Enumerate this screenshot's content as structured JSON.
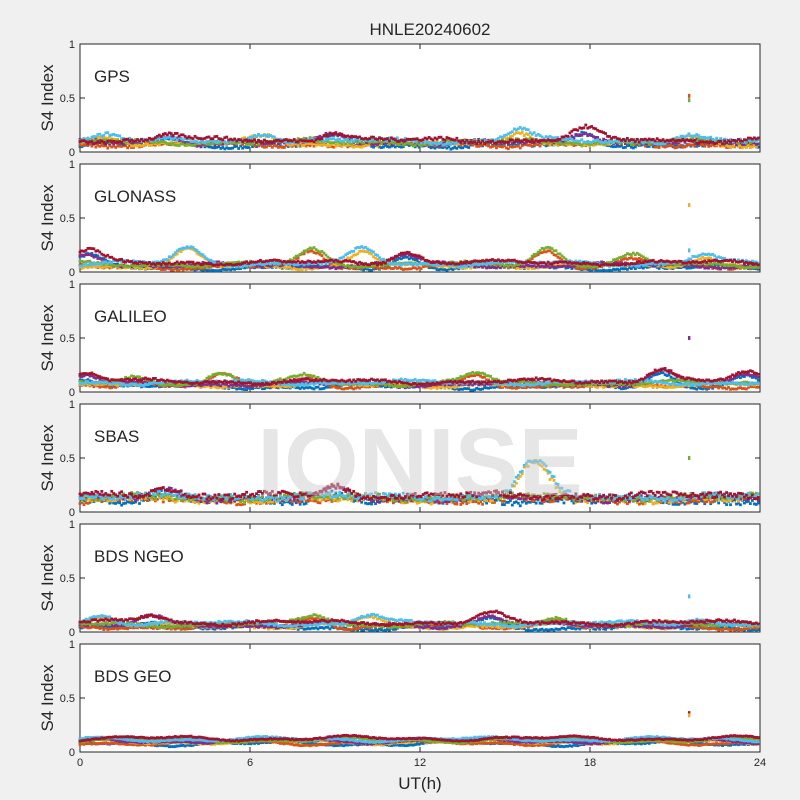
{
  "figure": {
    "title": "HNLE20240602",
    "watermark": "IONISE",
    "xlabel": "UT(h)",
    "xticks": [
      "0",
      "6",
      "12",
      "18",
      "24"
    ],
    "xlim": [
      0,
      24
    ]
  },
  "colors": [
    "#0072bd",
    "#d95319",
    "#edb120",
    "#7e2f8e",
    "#77ac30",
    "#4dbeee",
    "#a2142f"
  ],
  "chart_data": [
    {
      "type": "scatter",
      "title": "GPS",
      "ylabel": "S4 Index",
      "xlim": [
        0,
        24
      ],
      "ylim": [
        0,
        1
      ],
      "yticks": [
        "0",
        "0.5",
        "1"
      ],
      "baseline": 0.08,
      "noise": 0.03,
      "bumps": [
        [
          1.0,
          0.15
        ],
        [
          3.2,
          0.14
        ],
        [
          6.5,
          0.15
        ],
        [
          9.0,
          0.16
        ],
        [
          15.5,
          0.2
        ],
        [
          17.8,
          0.19
        ],
        [
          21.5,
          0.15
        ]
      ],
      "spikes": [
        {
          "x": 21.5,
          "y": 0.52
        },
        {
          "x": 21.5,
          "y": 0.48
        }
      ]
    },
    {
      "type": "scatter",
      "title": "GLONASS",
      "ylabel": "S4 Index",
      "xlim": [
        0,
        24
      ],
      "ylim": [
        0,
        1
      ],
      "yticks": [
        "0",
        "0.5",
        "1"
      ],
      "baseline": 0.06,
      "noise": 0.02,
      "bumps": [
        [
          0.3,
          0.17
        ],
        [
          3.8,
          0.2
        ],
        [
          8.2,
          0.2
        ],
        [
          10.0,
          0.19
        ],
        [
          11.5,
          0.16
        ],
        [
          16.5,
          0.22
        ],
        [
          19.5,
          0.14
        ],
        [
          22.0,
          0.15
        ]
      ],
      "spikes": [
        {
          "x": 21.5,
          "y": 0.62
        },
        {
          "x": 21.5,
          "y": 0.2
        }
      ]
    },
    {
      "type": "scatter",
      "title": "GALILEO",
      "ylabel": "S4 Index",
      "xlim": [
        0,
        24
      ],
      "ylim": [
        0,
        1
      ],
      "yticks": [
        "0",
        "0.5",
        "1"
      ],
      "baseline": 0.07,
      "noise": 0.02,
      "bumps": [
        [
          0.2,
          0.15
        ],
        [
          2.0,
          0.12
        ],
        [
          5.0,
          0.16
        ],
        [
          8.0,
          0.14
        ],
        [
          14.0,
          0.16
        ],
        [
          20.5,
          0.2
        ],
        [
          23.5,
          0.15
        ]
      ],
      "spikes": [
        {
          "x": 21.5,
          "y": 0.5
        }
      ]
    },
    {
      "type": "scatter",
      "title": "SBAS",
      "ylabel": "S4 Index",
      "xlim": [
        0,
        24
      ],
      "ylim": [
        0,
        1
      ],
      "yticks": [
        "0",
        "0.5",
        "1"
      ],
      "baseline": 0.12,
      "noise": 0.05,
      "bumps": [
        [
          15.8,
          0.32
        ],
        [
          16.3,
          0.3
        ],
        [
          3.0,
          0.2
        ],
        [
          9.0,
          0.2
        ]
      ],
      "spikes": [
        {
          "x": 21.5,
          "y": 0.5
        }
      ]
    },
    {
      "type": "scatter",
      "title": "BDS NGEO",
      "ylabel": "S4 Index",
      "xlim": [
        0,
        24
      ],
      "ylim": [
        0,
        1
      ],
      "yticks": [
        "0",
        "0.5",
        "1"
      ],
      "baseline": 0.06,
      "noise": 0.02,
      "bumps": [
        [
          0.8,
          0.14
        ],
        [
          2.5,
          0.13
        ],
        [
          8.3,
          0.15
        ],
        [
          10.2,
          0.14
        ],
        [
          14.5,
          0.14
        ],
        [
          16.8,
          0.14
        ],
        [
          21.8,
          0.1
        ]
      ],
      "spikes": [
        {
          "x": 21.5,
          "y": 0.33
        }
      ]
    },
    {
      "type": "scatter",
      "title": "BDS GEO",
      "ylabel": "S4 Index",
      "xlim": [
        0,
        24
      ],
      "ylim": [
        0,
        1
      ],
      "yticks": [
        "0",
        "0.5",
        "1"
      ],
      "baseline": 0.1,
      "noise": 0.01,
      "bumps": [],
      "spikes": [
        {
          "x": 21.5,
          "y": 0.36
        },
        {
          "x": 21.5,
          "y": 0.34
        }
      ]
    }
  ]
}
